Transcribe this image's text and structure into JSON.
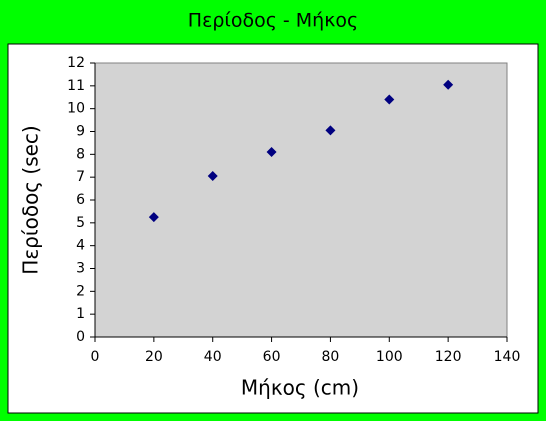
{
  "chart_data": {
    "type": "scatter",
    "title": "Περίοδος - Μήκος",
    "x_label": "Μήκος (cm)",
    "y_label": "Περίοδος (sec)",
    "series": [
      {
        "color": "#000080",
        "x": [
          20,
          40,
          60,
          80,
          100,
          120
        ],
        "values": [
          5.25,
          7.05,
          8.1,
          9.05,
          10.4,
          11.05
        ]
      }
    ],
    "xlim": [
      0,
      140
    ],
    "xticks": [
      0,
      20,
      40,
      60,
      80,
      100,
      120,
      140
    ],
    "ylim": [
      0,
      12
    ],
    "yticks": [
      0,
      1,
      2,
      3,
      4,
      5,
      6,
      7,
      8,
      9,
      10,
      11,
      12
    ]
  }
}
